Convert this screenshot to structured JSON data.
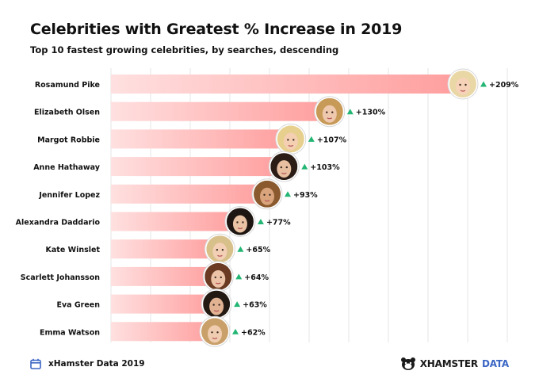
{
  "header": {
    "title": "Celebrities with Greatest % Increase in 2019",
    "subtitle": "Top 10 fastest growing celebrities, by searches, descending"
  },
  "footer": {
    "source": "xHamster Data 2019",
    "brand_primary": "XHAMSTER",
    "brand_secondary": "DATA",
    "source_icon": "calendar-icon",
    "brand_icon": "hamster-logo-icon"
  },
  "colors": {
    "bar_start": "#ffe0e0",
    "bar_end": "#ff9d9d",
    "arrow": "#22b573",
    "grid": "#e6e6e6",
    "brand_blue": "#3b66c4"
  },
  "chart_data": {
    "type": "bar",
    "orientation": "horizontal",
    "title": "Celebrities with Greatest % Increase in 2019",
    "subtitle": "Top 10 fastest growing celebrities, by searches, descending",
    "categories": [
      "Rosamund Pike",
      "Elizabeth Olsen",
      "Margot Robbie",
      "Anne Hathaway",
      "Jennifer Lopez",
      "Alexandra Daddario",
      "Kate Winslet",
      "Scarlett Johansson",
      "Eva Green",
      "Emma Watson"
    ],
    "values": [
      209,
      130,
      107,
      103,
      93,
      77,
      65,
      64,
      63,
      62
    ],
    "value_labels": [
      "+209%",
      "+130%",
      "+107%",
      "+103%",
      "+93%",
      "+77%",
      "+65%",
      "+64%",
      "+63%",
      "+62%"
    ],
    "unit": "%",
    "grid": true,
    "legend": "none"
  }
}
